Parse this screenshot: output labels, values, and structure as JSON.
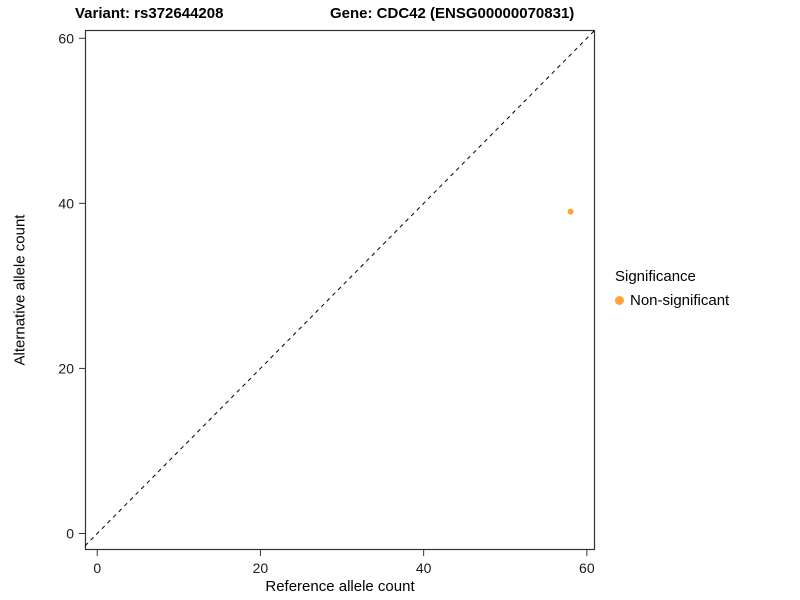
{
  "chart_data": {
    "type": "scatter",
    "title_left": "Variant: rs372644208",
    "title_right": "Gene: CDC42 (ENSG00000070831)",
    "xlabel": "Reference allele count",
    "ylabel": "Alternative allele count",
    "xlim": [
      -1.5,
      61
    ],
    "ylim": [
      -2,
      61
    ],
    "xticks": [
      0,
      20,
      40,
      60
    ],
    "yticks": [
      0,
      20,
      40,
      60
    ],
    "grid": false,
    "identity_line": {
      "equation": "y = x",
      "style": "dashed",
      "color": "#000000"
    },
    "series": [
      {
        "name": "Non-significant",
        "color": "#FFA333",
        "points": [
          {
            "x": 58,
            "y": 39
          }
        ]
      }
    ],
    "legend": {
      "title": "Significance",
      "position": "right",
      "entries": [
        {
          "label": "Non-significant",
          "color": "#FFA333"
        }
      ]
    },
    "panel": {
      "border_color": "#333333",
      "background": "#ffffff",
      "tick_color": "#333333",
      "tick_label_color": "#1a1a1a"
    }
  }
}
